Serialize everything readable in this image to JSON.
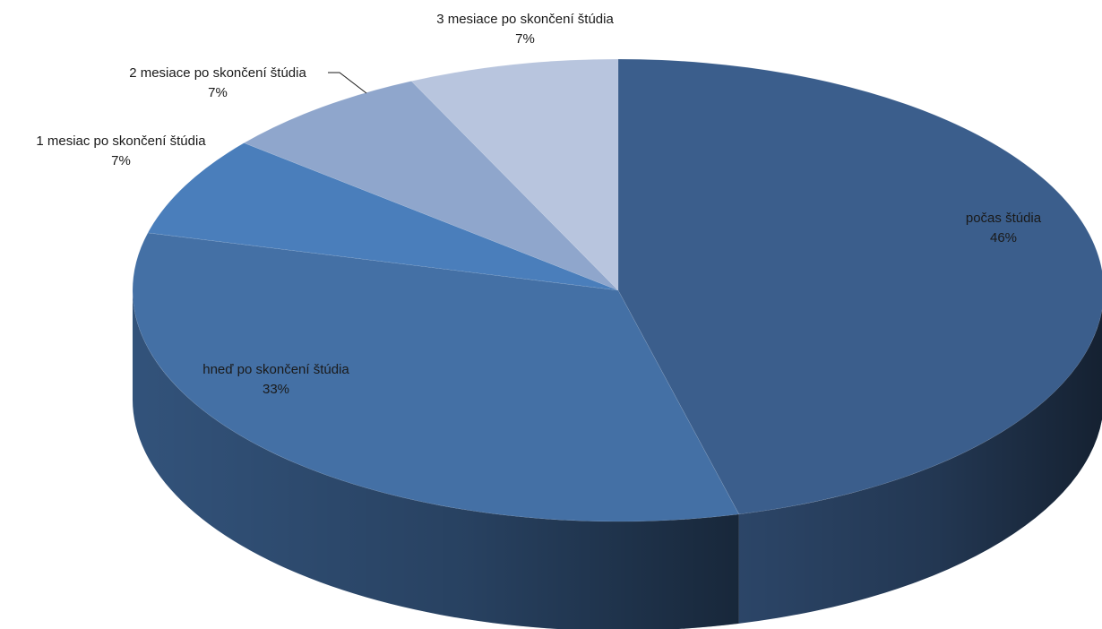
{
  "chart_data": {
    "type": "pie",
    "style": "3d",
    "title": "",
    "slices": [
      {
        "label": "počas štúdia",
        "value": 46,
        "value_label": "46%",
        "color": "#3B5E8C"
      },
      {
        "label": "hneď po skončení štúdia",
        "value": 33,
        "value_label": "33%",
        "color": "#4470A5"
      },
      {
        "label": "1 mesiac po skončení štúdia",
        "value": 7,
        "value_label": "7%",
        "color": "#4A7EBB"
      },
      {
        "label": "2 mesiace po skončení štúdia",
        "value": 7,
        "value_label": "7%",
        "color": "#8FA6CC"
      },
      {
        "label": "3 mesiace po skončení štúdia",
        "value": 7,
        "value_label": "7%",
        "color": "#B8C5DE"
      }
    ],
    "legend": "none"
  }
}
